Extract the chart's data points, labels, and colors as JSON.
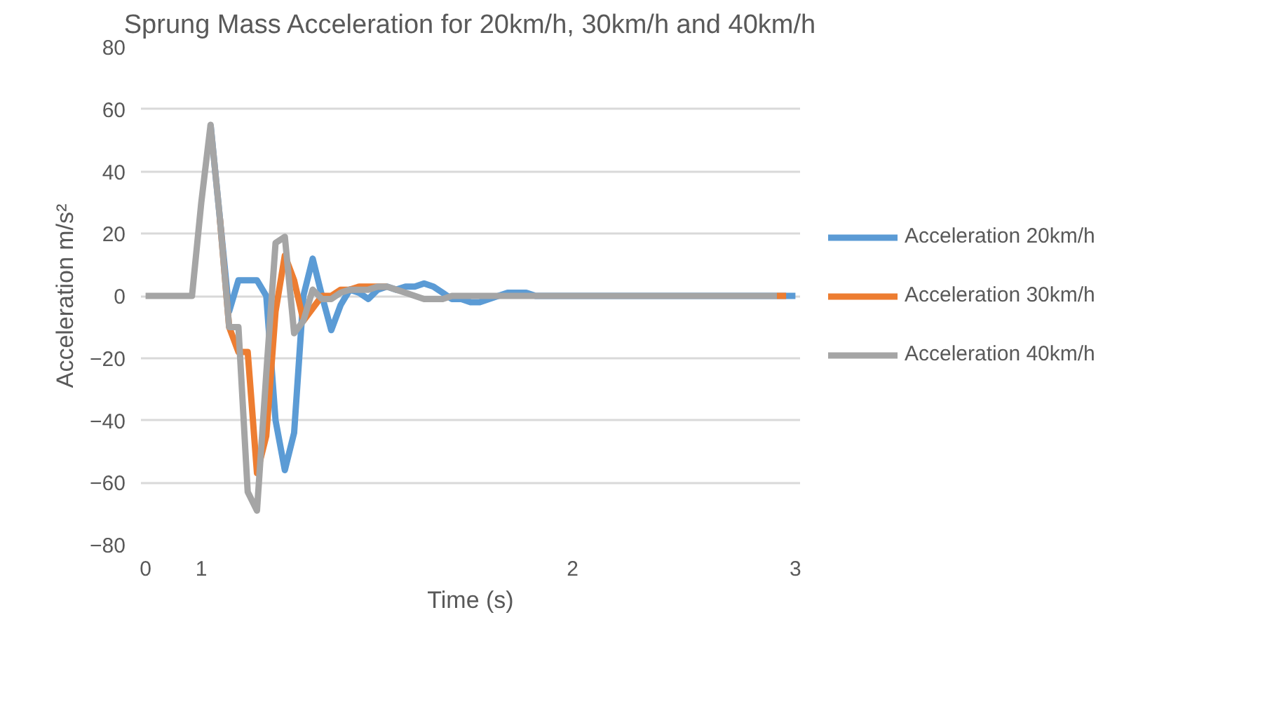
{
  "chart_data": {
    "type": "line",
    "title": "Sprung Mass Acceleration for 20km/h, 30km/h and 40km/h",
    "xlabel": "Time (s)",
    "ylabel": "Acceleration m/s²",
    "categories": [
      "0",
      null,
      null,
      null,
      null,
      null,
      "1",
      null,
      null,
      null,
      null,
      null,
      null,
      null,
      null,
      null,
      null,
      null,
      null,
      null,
      null,
      null,
      null,
      null,
      null,
      null,
      null,
      null,
      null,
      null,
      null,
      null,
      null,
      null,
      null,
      null,
      null,
      null,
      null,
      null,
      null,
      null,
      null,
      null,
      null,
      null,
      "2",
      null,
      null,
      null,
      null,
      null,
      null,
      null,
      null,
      null,
      null,
      null,
      null,
      null,
      null,
      null,
      null,
      null,
      null,
      null,
      null,
      null,
      null,
      null,
      "3"
    ],
    "ylim": [
      -80,
      80
    ],
    "yticks": [
      -80,
      -60,
      -40,
      -20,
      0,
      20,
      40,
      60,
      80
    ],
    "grid": "y",
    "legend": "right",
    "line_style": "solid",
    "marker": "none",
    "series": [
      {
        "name": "Acceleration 20km/h",
        "color": "#5b9bd5",
        "values": [
          null,
          null,
          null,
          null,
          null,
          null,
          null,
          55,
          25,
          -5,
          5,
          5,
          5,
          0,
          -40,
          -56,
          -44,
          0,
          12,
          0,
          -11,
          -3,
          2,
          1,
          -1,
          2,
          3,
          2,
          3,
          3,
          4,
          3,
          1,
          -1,
          -1,
          -2,
          -2,
          -1,
          0,
          1,
          1,
          1,
          0,
          0,
          0,
          0,
          0,
          0,
          0,
          0,
          0,
          0,
          0,
          0,
          0,
          0,
          0,
          0,
          0,
          0,
          0,
          0,
          0,
          0,
          0,
          0,
          0,
          0,
          0,
          0,
          0
        ]
      },
      {
        "name": "Acceleration 30km/h",
        "color": "#ed7d31",
        "values": [
          null,
          null,
          null,
          null,
          null,
          null,
          null,
          null,
          25,
          -10,
          -18,
          -18,
          -57,
          -45,
          -5,
          13,
          5,
          -8,
          -4,
          0,
          0,
          2,
          2,
          3,
          3,
          3,
          3,
          null,
          null,
          null,
          null,
          null,
          null,
          null,
          null,
          null,
          null,
          null,
          null,
          null,
          null,
          null,
          null,
          null,
          null,
          null,
          null,
          null,
          null,
          null,
          null,
          null,
          null,
          null,
          null,
          null,
          null,
          null,
          null,
          null,
          null,
          null,
          null,
          null,
          null,
          null,
          null,
          null,
          0,
          0,
          null
        ]
      },
      {
        "name": "Acceleration 40km/h",
        "color": "#a5a5a5",
        "values": [
          0,
          0,
          0,
          0,
          0,
          0,
          30,
          55,
          25,
          -10,
          -10,
          -63,
          -69,
          -25,
          17,
          19,
          -12,
          -8,
          2,
          -1,
          -1,
          1,
          2,
          2,
          2,
          3,
          3,
          2,
          1,
          0,
          -1,
          -1,
          -1,
          0,
          0,
          0,
          0,
          0,
          0,
          0,
          0,
          0,
          0,
          0,
          0,
          0,
          0,
          0,
          0,
          0,
          0,
          0,
          0,
          0,
          0,
          0,
          0,
          0,
          0,
          0,
          0,
          0,
          0,
          0,
          0,
          0,
          0,
          0,
          0,
          null,
          null
        ]
      }
    ]
  }
}
